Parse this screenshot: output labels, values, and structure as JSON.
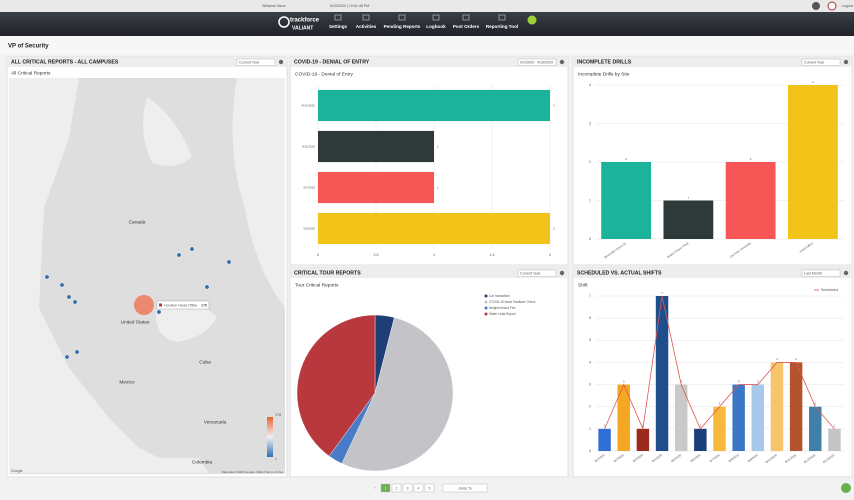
{
  "header": {
    "user": "Williams Steve",
    "datetime": "9/15/2020 | 10:51:48 PM",
    "brand": "trackforce",
    "brand_sub": "VALIANT",
    "nav": [
      "Settings",
      "Activities",
      "Pending Reports",
      "Logbook",
      "Post Orders",
      "Reporting Tool"
    ],
    "logout": "Logout"
  },
  "page_title": "VP of Security",
  "map_panel": {
    "title": "ALL CRITICAL REPORTS - ALL CAMPUSES",
    "filter": "Current Year",
    "subtitle": "All Critical Reports",
    "labels": [
      "Canada",
      "United States",
      "Mexico",
      "Cuba",
      "Venezuela",
      "Colombia"
    ],
    "marker": {
      "label": "Houston Head Office",
      "value": 178
    },
    "legend_max": 178,
    "legend_min": 1,
    "attribution": "Google",
    "terms": "Map data ©2020 Google, INEGI   Terms of Use"
  },
  "panels": [
    {
      "title": "COVID-19 - DENIAL OF ENTRY",
      "filter": "9/1/2020 - 9/15/2020",
      "chart": {
        "type": "hbar",
        "title": "COVID-19 - Denial of Entry",
        "categories": [
          "9/14/2020",
          "9/11/2020",
          "9/7/2020",
          "9/3/2020"
        ],
        "values": [
          2,
          1,
          1,
          2
        ],
        "colors": [
          "#1bb39a",
          "#2e3a3a",
          "#f65656",
          "#f2c318"
        ],
        "xlim": [
          0,
          2
        ],
        "xticks": [
          0,
          0.5,
          1,
          1.5,
          2
        ],
        "grid": true
      }
    },
    {
      "title": "INCOMPLETE DRILLS",
      "filter": "Current Year",
      "chart": {
        "type": "bar",
        "title": "Incomplete Drills by Site",
        "categories": [
          "Riverside Home Ctr",
          "Bristol Power Plant",
          "Cal Poly University",
          "Head Office"
        ],
        "values": [
          2,
          1,
          2,
          4
        ],
        "colors": [
          "#1bb39a",
          "#2e3a3a",
          "#f65656",
          "#f2c318"
        ],
        "ylim": [
          0,
          4
        ],
        "yticks": [
          0,
          1,
          2,
          3,
          4
        ],
        "grid": true
      }
    },
    {
      "title": "CRITICAL TOUR REPORTS",
      "filter": "Current Year",
      "chart": {
        "type": "pie",
        "title": "Tour Critical Reports",
        "categories": [
          "Car Vandalism",
          "COVID-19 Issue Sanitizer Check",
          "Neighborhood Fire",
          "Water Leak Report"
        ],
        "values": [
          4,
          53,
          3,
          40
        ],
        "colors": [
          "#1f3e75",
          "#c3c3c8",
          "#4a7bc8",
          "#b8383d"
        ]
      }
    },
    {
      "title": "SCHEDULED VS. ACTUAL SHIFTS",
      "filter": "Last Month",
      "chart": {
        "type": "combo",
        "title": "Shift",
        "categories": [
          "8/1/2020",
          "8/2/2020",
          "8/3/2020",
          "8/4/2020",
          "8/5/2020",
          "8/6/2020",
          "8/7/2020",
          "8/8/2020",
          "8/9/2020",
          "8/10/2020",
          "8/11/2020",
          "8/12/2020",
          "8/13/2020"
        ],
        "values": [
          1,
          3,
          1,
          7,
          3,
          1,
          2,
          3,
          3,
          4,
          4,
          2,
          1
        ],
        "colors": [
          "#2f6fd6",
          "#f5a623",
          "#9b2a1c",
          "#1f4e8c",
          "#c9c9c9",
          "#1a3f7a",
          "#f6b93b",
          "#3b78c4",
          "#a9c7ea",
          "#f7c46c",
          "#b5532e",
          "#3f7fa8",
          "#c4c4c4"
        ],
        "line": {
          "name": "Scheduled",
          "color": "#e0584f",
          "values": [
            1,
            3,
            1,
            7,
            3,
            1,
            2,
            3,
            3,
            4,
            4,
            2,
            1
          ]
        },
        "ylim": [
          0,
          7
        ],
        "yticks": [
          0,
          1,
          2,
          3,
          4,
          5,
          6,
          7
        ],
        "grid": true
      }
    }
  ],
  "pagination": {
    "pages": [
      "1",
      "2",
      "3",
      "4",
      "5"
    ],
    "jump": "Jump To"
  }
}
